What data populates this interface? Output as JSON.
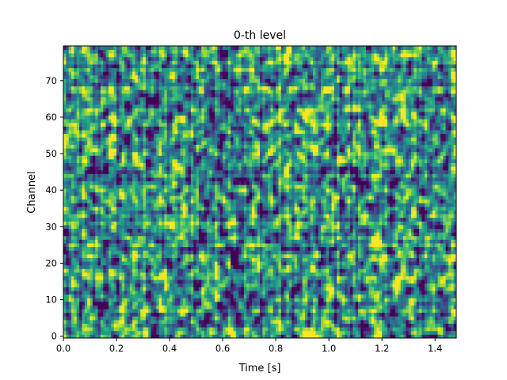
{
  "chart_data": {
    "type": "heatmap",
    "title": "0-th level",
    "xlabel": "Time [s]",
    "ylabel": "Channel",
    "xlim": [
      0.0,
      1.48
    ],
    "ylim": [
      -0.5,
      79.5
    ],
    "xticks": [
      0.0,
      0.2,
      0.4,
      0.6,
      0.8,
      1.0,
      1.2,
      1.4
    ],
    "xtick_labels": [
      "0.0",
      "0.2",
      "0.4",
      "0.6",
      "0.8",
      "1.0",
      "1.2",
      "1.4"
    ],
    "yticks": [
      0,
      10,
      20,
      30,
      40,
      50,
      60,
      70
    ],
    "ytick_labels": [
      "0",
      "10",
      "20",
      "30",
      "40",
      "50",
      "60",
      "70"
    ],
    "colormap": "viridis",
    "n_channels": 80,
    "n_time_bins": 148,
    "grid": false,
    "legend": "none",
    "colors": {
      "low": "#440154",
      "mid": "#21918c",
      "high": "#fde725"
    }
  }
}
